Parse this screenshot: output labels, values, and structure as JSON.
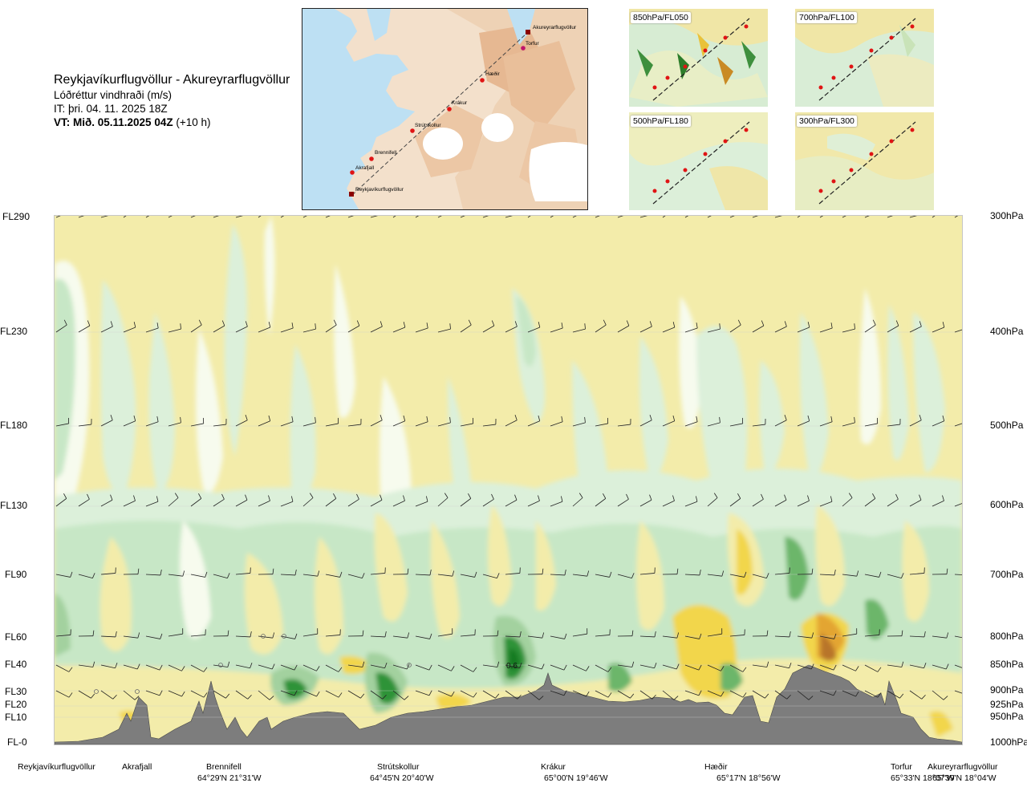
{
  "header": {
    "route": "Reykjavíkurflugvöllur - Akureyrarflugvöllur",
    "subtitle": "Lóðréttur vindhraði (m/s)",
    "it": "IT: þri. 04. 11. 2025 18Z",
    "vt_bold": "VT: Mið. 05.11.2025 04Z",
    "vt_rest": " (+10 h)"
  },
  "route_map": {
    "labels": [
      "Akureyrarflugvöllur",
      "Torfur",
      "Hæðir",
      "Krákur",
      "Strútskollur",
      "Brennifell",
      "Akrafjall",
      "Reykjavíkurflugvöllur"
    ]
  },
  "thumbs": [
    {
      "label": "850hPa/FL050"
    },
    {
      "label": "700hPa/FL100"
    },
    {
      "label": "500hPa/FL180"
    },
    {
      "label": "300hPa/FL300"
    }
  ],
  "levels": [
    {
      "fl": "FL290",
      "hpa": "300hPa"
    },
    {
      "fl": "FL230",
      "hpa": "400hPa"
    },
    {
      "fl": "FL180",
      "hpa": "500hPa"
    },
    {
      "fl": "FL130",
      "hpa": "600hPa"
    },
    {
      "fl": "FL90",
      "hpa": "700hPa"
    },
    {
      "fl": "FL60",
      "hpa": "800hPa"
    },
    {
      "fl": "FL40",
      "hpa": "850hPa"
    },
    {
      "fl": "FL30",
      "hpa": "900hPa"
    },
    {
      "fl": "FL20",
      "hpa": "925hPa"
    },
    {
      "fl": "FL10",
      "hpa": "950hPa"
    },
    {
      "fl": "FL-0",
      "hpa": "1000hPa"
    }
  ],
  "waypoints": [
    {
      "name": "Reykjavíkurflugvöllur",
      "coord": ""
    },
    {
      "name": "Akrafjall",
      "coord": ""
    },
    {
      "name": "Brennifell",
      "coord": "64°29'N 21°31'W"
    },
    {
      "name": "Strútskollur",
      "coord": "64°45'N 20°40'W"
    },
    {
      "name": "Krákur",
      "coord": "65°00'N 19°46'W"
    },
    {
      "name": "Hæðir",
      "coord": "65°17'N 18°56'W"
    },
    {
      "name": "Torfur",
      "coord": "65°33'N 18°07'W"
    },
    {
      "name": "Akureyrarflugvöllur",
      "coord": "65°39'N 18°04'W"
    }
  ],
  "plot_annotation": "0.6",
  "colors": {
    "neutral": "#f3ecaa",
    "down_weak": "#f5eeae",
    "down_light": "#ece18a",
    "up_white": "#f7fbee",
    "up_pale": "#dcf0da",
    "up_light": "#c7e7c6",
    "up_mid": "#a3d19f",
    "up_strong": "#6cb66b",
    "up_vstrong": "#2d9337",
    "up_dark": "#137a24",
    "down_yellow": "#f2d64c",
    "down_orange": "#e3a530",
    "down_brown": "#b8742a",
    "terrain": "#7d7d7d",
    "route_marker": "#e01414"
  }
}
